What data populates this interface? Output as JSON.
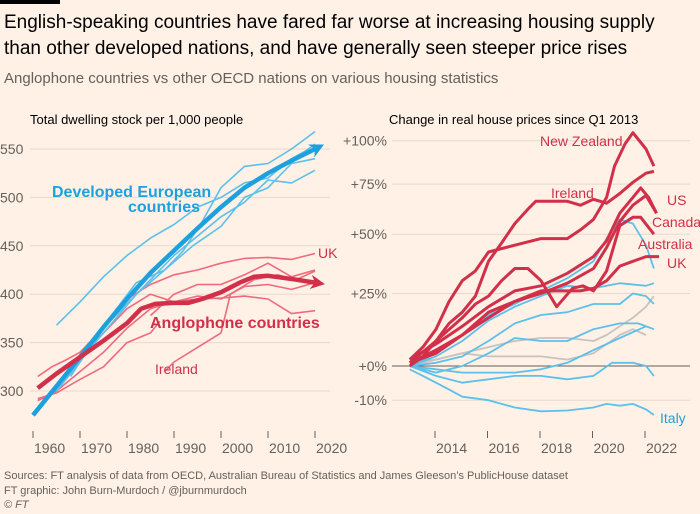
{
  "title": "English-speaking countries have fared far worse at increasing housing supply than other developed nations, and have generally seen steeper price rises",
  "subtitle": "Anglophone countries vs other OECD nations on various housing statistics",
  "footer": {
    "sources": "Sources: FT analysis of data from OECD, Australian Bureau of Statistics and James Gleeson’s PublicHouse dataset",
    "credit": "FT graphic: John Burn-Murdoch / @jburnmurdoch",
    "copyright": "© FT"
  },
  "colors": {
    "background": "#FFF1E5",
    "anglophone": "#D12F4A",
    "anglophone_light": "#F0697E",
    "europe": "#1DA1DE",
    "europe_light": "#5CC0EB",
    "other": "#C8C3BF"
  },
  "chart_data": [
    {
      "type": "line",
      "title": "Total dwelling stock per 1,000 people",
      "xlabel": "",
      "ylabel": "",
      "xlim": [
        1958,
        2022
      ],
      "ylim": [
        265,
        570
      ],
      "xticks": [
        1960,
        1970,
        1980,
        1990,
        2000,
        2010,
        2020
      ],
      "yticks": [
        300,
        350,
        400,
        450,
        500,
        550
      ],
      "grid": true,
      "annotations": [
        "Developed European countries",
        "Anglophone countries",
        "UK",
        "Ireland"
      ],
      "series": [
        {
          "name": "Developed European countries",
          "group": "europe",
          "emphasis": true,
          "x": [
            1960,
            1965,
            1970,
            1975,
            1980,
            1985,
            1990,
            1995,
            2000,
            2005,
            2010,
            2015,
            2020
          ],
          "y": [
            275,
            305,
            335,
            366,
            395,
            422,
            445,
            468,
            490,
            510,
            525,
            538,
            550
          ]
        },
        {
          "name": "Anglophone countries",
          "group": "anglophone",
          "emphasis": true,
          "x": [
            1961,
            1965,
            1970,
            1975,
            1980,
            1983,
            1986,
            1990,
            1993,
            1996,
            2000,
            2004,
            2007,
            2010,
            2013,
            2016,
            2020
          ],
          "y": [
            303,
            318,
            335,
            352,
            370,
            385,
            390,
            391,
            391,
            395,
            402,
            412,
            418,
            419,
            417,
            415,
            412
          ]
        },
        {
          "name": "UK",
          "group": "anglophone",
          "x": [
            1961,
            1964,
            1967,
            1970,
            1975,
            1980,
            1985,
            1990,
            1995,
            2000,
            2005,
            2010,
            2015,
            2020
          ],
          "y": [
            315,
            325,
            332,
            340,
            365,
            395,
            410,
            420,
            425,
            432,
            437,
            438,
            436,
            442
          ]
        },
        {
          "name": "Ireland",
          "group": "anglophone",
          "x": [
            1961,
            1965,
            1970,
            1975,
            1980,
            1985,
            1987
          ],
          "y": [
            292,
            298,
            312,
            325,
            350,
            360,
            372
          ]
        },
        {
          "name": "",
          "group": "anglophone",
          "x": [
            1988,
            1990,
            1995,
            2000,
            2002,
            2007,
            2012,
            2016,
            2020
          ],
          "y": [
            320,
            330,
            345,
            360,
            400,
            415,
            420,
            415,
            424
          ]
        },
        {
          "name": "",
          "group": "anglophone",
          "x": [
            1961,
            1965,
            1970,
            1975,
            1980,
            1985,
            1990,
            1995,
            2000,
            2005,
            2010,
            2015,
            2020
          ],
          "y": [
            290,
            300,
            320,
            340,
            365,
            385,
            392,
            398,
            395,
            408,
            410,
            405,
            412
          ]
        },
        {
          "name": "",
          "group": "anglophone",
          "x": [
            1970,
            1975,
            1980,
            1985,
            1990,
            1995,
            2000,
            2005,
            2010,
            2015,
            2020
          ],
          "y": [
            335,
            360,
            385,
            400,
            392,
            395,
            396,
            398,
            395,
            380,
            383
          ]
        },
        {
          "name": "",
          "group": "anglophone",
          "x": [
            1985,
            1990,
            1995,
            2000,
            2005,
            2010,
            2015,
            2020
          ],
          "y": [
            378,
            400,
            410,
            410,
            420,
            432,
            418,
            425
          ]
        },
        {
          "name": "",
          "group": "europe",
          "x": [
            1965,
            1970,
            1975,
            1980,
            1985,
            1990,
            1995,
            2000,
            2005,
            2010,
            2015,
            2018,
            2020
          ],
          "y": [
            368,
            392,
            418,
            440,
            458,
            472,
            490,
            500,
            515,
            520,
            540,
            548,
            555
          ]
        },
        {
          "name": "",
          "group": "europe",
          "x": [
            1968,
            1972,
            1977,
            1982,
            1988,
            1992,
            1996,
            2000,
            2005,
            2010,
            2015,
            2020
          ],
          "y": [
            315,
            345,
            380,
            412,
            425,
            445,
            475,
            510,
            532,
            535,
            550,
            568
          ]
        },
        {
          "name": "",
          "group": "europe",
          "x": [
            1965,
            1970,
            1975,
            1980,
            1985,
            1990,
            1995,
            2000,
            2005,
            2010,
            2015,
            2020
          ],
          "y": [
            300,
            330,
            365,
            390,
            415,
            440,
            460,
            480,
            495,
            518,
            515,
            528
          ]
        },
        {
          "name": "",
          "group": "europe",
          "x": [
            1962,
            1968,
            1975,
            1982,
            1988,
            1994,
            2000,
            2005,
            2010,
            2015,
            2020
          ],
          "y": [
            290,
            320,
            360,
            400,
            425,
            450,
            470,
            500,
            510,
            535,
            540
          ]
        }
      ]
    },
    {
      "type": "line",
      "title": "Change in real house prices since Q1 2013",
      "xlabel": "",
      "ylabel": "",
      "yscale": "log",
      "xlim": [
        2012.3,
        2023.2
      ],
      "ylim": [
        -15,
        110
      ],
      "xticks": [
        2014,
        2016,
        2018,
        2020,
        2022
      ],
      "yticks": [
        -10,
        0,
        25,
        50,
        75,
        100
      ],
      "ytick_labels": [
        "-10%",
        "+0%",
        "+25%",
        "+50%",
        "+75%",
        "+100%"
      ],
      "grid": true,
      "series": [
        {
          "name": "New Zealand",
          "group": "anglophone",
          "x": [
            2013,
            2013.5,
            2014,
            2014.5,
            2015,
            2015.5,
            2016,
            2017,
            2018,
            2019,
            2019.5,
            2020,
            2020.5,
            2020.8,
            2021.2,
            2021.5,
            2022,
            2022.3
          ],
          "y": [
            2,
            6,
            12,
            22,
            30,
            34,
            42,
            45,
            48,
            48,
            52,
            57,
            68,
            85,
            98,
            105,
            95,
            85
          ]
        },
        {
          "name": "Ireland",
          "group": "anglophone",
          "x": [
            2013,
            2013.5,
            2014,
            2014.5,
            2015,
            2015.5,
            2016,
            2016.5,
            2017,
            2017.5,
            2017.8,
            2018.5,
            2019,
            2019.5,
            2020,
            2020.5,
            2021,
            2021.5,
            2022,
            2022.3
          ],
          "y": [
            0,
            3,
            8,
            14,
            18,
            24,
            38,
            46,
            55,
            62,
            66,
            66,
            66,
            64,
            67,
            65,
            70,
            76,
            81,
            82
          ]
        },
        {
          "name": "US",
          "group": "anglophone",
          "x": [
            2013,
            2014,
            2015,
            2016,
            2017,
            2018,
            2019,
            2020,
            2020.5,
            2021,
            2021.5,
            2021.8,
            2022.1,
            2022.4
          ],
          "y": [
            2,
            7,
            13,
            20,
            26,
            28,
            33,
            40,
            47,
            60,
            68,
            73,
            68,
            60
          ]
        },
        {
          "name": "Canada",
          "group": "anglophone",
          "x": [
            2013,
            2014,
            2015,
            2015.5,
            2016,
            2016.5,
            2017,
            2017.5,
            2018,
            2018.6,
            2019.2,
            2019.6,
            2020,
            2020.5,
            2021,
            2021.5,
            2021.8,
            2022.3
          ],
          "y": [
            1,
            8,
            16,
            21,
            24,
            30,
            35,
            35,
            30,
            20,
            27,
            28,
            26,
            34,
            54,
            58,
            58,
            50
          ]
        },
        {
          "name": "Australia",
          "group": "anglophone",
          "x": [
            2013,
            2014,
            2015,
            2016,
            2017,
            2018,
            2019,
            2020,
            2020.5,
            2021,
            2021.5,
            2022,
            2022.4
          ],
          "y": [
            1,
            5,
            10,
            16,
            22,
            25,
            29,
            35,
            44,
            56,
            64,
            69,
            60
          ]
        },
        {
          "name": "UK",
          "group": "anglophone",
          "x": [
            2013,
            2014,
            2015,
            2016,
            2017,
            2018,
            2018.5,
            2019,
            2019.5,
            2020,
            2020.5,
            2021,
            2021.5,
            2022,
            2022.5
          ],
          "y": [
            1,
            4,
            10,
            18,
            22,
            26,
            26,
            26,
            26,
            27,
            30,
            36,
            38,
            40,
            40
          ]
        },
        {
          "name": "",
          "group": "europe",
          "x": [
            2013,
            2014,
            2015,
            2016,
            2017,
            2018,
            2019,
            2020,
            2020.5,
            2021,
            2021.5,
            2022,
            2022.3
          ],
          "y": [
            0,
            4,
            10,
            17,
            21,
            26,
            31,
            38,
            48,
            57,
            55,
            45,
            35
          ]
        },
        {
          "name": "",
          "group": "europe",
          "x": [
            2013,
            2014,
            2015,
            2016,
            2017,
            2018,
            2019,
            2020,
            2021,
            2022,
            2022.3
          ],
          "y": [
            0,
            3,
            8,
            15,
            20,
            24,
            28,
            27,
            29,
            28,
            29
          ]
        },
        {
          "name": "",
          "group": "europe",
          "x": [
            2013,
            2014,
            2015,
            2016,
            2017,
            2018,
            2019,
            2020,
            2021,
            2021.5,
            2022,
            2022.3
          ],
          "y": [
            0,
            1,
            3,
            8,
            14,
            17,
            18,
            21,
            21,
            25,
            24,
            21
          ]
        },
        {
          "name": "",
          "group": "europe",
          "x": [
            2013,
            2014,
            2015,
            2016,
            2017,
            2018,
            2019,
            2020,
            2021,
            2021.7,
            2022.3
          ],
          "y": [
            0,
            -2,
            0,
            4,
            9,
            8,
            8,
            12,
            14,
            14,
            12
          ]
        },
        {
          "name": "",
          "group": "europe",
          "x": [
            2013,
            2014,
            2015,
            2016,
            2017,
            2018,
            2019,
            2020,
            2020.7,
            2021.5,
            2022,
            2022.3
          ],
          "y": [
            0,
            -3,
            -5,
            -4,
            -3,
            -3,
            -4,
            -3,
            1,
            1,
            0,
            -3
          ]
        },
        {
          "name": "",
          "group": "europe",
          "x": [
            2013,
            2014,
            2015,
            2016,
            2017,
            2018,
            2019,
            2020,
            2021,
            2022
          ],
          "y": [
            0,
            -1,
            -2,
            -2,
            -2,
            -1,
            1,
            5,
            9,
            13
          ]
        },
        {
          "name": "Italy",
          "group": "europe",
          "x": [
            2013,
            2013.5,
            2014,
            2014.5,
            2015,
            2016,
            2017,
            2018,
            2019,
            2020,
            2020.5,
            2021,
            2021.5,
            2022,
            2022.3
          ],
          "y": [
            -1,
            -3,
            -5,
            -7,
            -9,
            -10,
            -12,
            -13,
            -12.8,
            -12,
            -11,
            -11.5,
            -11,
            -12.5,
            -14
          ]
        },
        {
          "name": "",
          "group": "other",
          "x": [
            2013,
            2014,
            2015,
            2016,
            2017,
            2018,
            2019,
            2020,
            2020.5,
            2021,
            2021.5,
            2022,
            2022.3
          ],
          "y": [
            1,
            2,
            4,
            6,
            8,
            9,
            9,
            8,
            10,
            13,
            16,
            20,
            24
          ]
        },
        {
          "name": "",
          "group": "other",
          "x": [
            2013,
            2014,
            2015,
            2016,
            2017,
            2018,
            2019,
            2020,
            2021,
            2021.5,
            2022
          ],
          "y": [
            0,
            2,
            4,
            3,
            3,
            3,
            2,
            4,
            10,
            12,
            10
          ]
        }
      ]
    }
  ]
}
